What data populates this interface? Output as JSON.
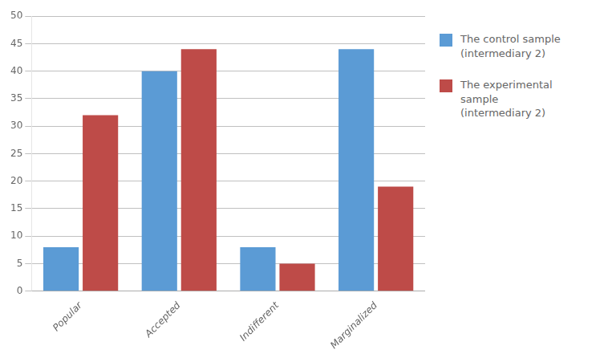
{
  "chart_data": {
    "type": "bar",
    "categories": [
      "Popular",
      "Accepted",
      "Indifferent",
      "Marginalized"
    ],
    "series": [
      {
        "name": "The control sample\n(intermediary 2)",
        "color": "#5B9BD5",
        "values": [
          8,
          40,
          8,
          44
        ]
      },
      {
        "name": "The experimental sample\n(intermediary 2)",
        "color": "#BE4B48",
        "values": [
          32,
          44,
          5,
          19
        ]
      }
    ],
    "ylim": [
      0,
      50
    ],
    "yticks": [
      0,
      5,
      10,
      15,
      20,
      25,
      30,
      35,
      40,
      45,
      50
    ],
    "grid": true,
    "legend": "right"
  }
}
